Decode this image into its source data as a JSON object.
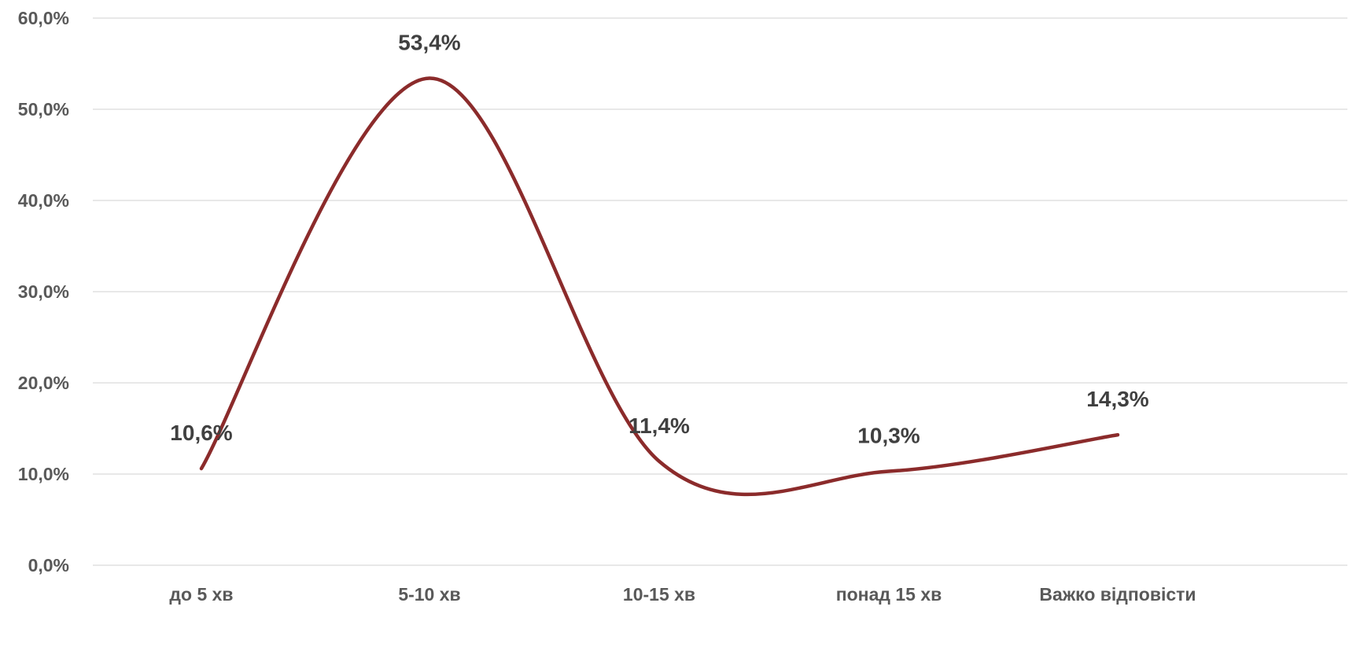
{
  "chart_data": {
    "type": "line",
    "smooth": true,
    "categories": [
      "до 5 хв",
      "5-10 хв",
      "10-15 хв",
      "понад 15 хв",
      "Важко відповісти"
    ],
    "series": [
      {
        "values": [
          10.6,
          53.4,
          11.4,
          10.3,
          14.3
        ],
        "data_labels": [
          "10,6%",
          "53,4%",
          "11,4%",
          "10,3%",
          "14,3%"
        ],
        "color": "#8b2b2b"
      }
    ],
    "y_ticks": [
      0,
      10,
      20,
      30,
      40,
      50,
      60
    ],
    "y_tick_labels": [
      "0,0%",
      "10,0%",
      "20,0%",
      "30,0%",
      "40,0%",
      "50,0%",
      "60,0%"
    ],
    "ylim": [
      0,
      60
    ],
    "grid": true,
    "legend": "none",
    "title": "",
    "xlabel": "",
    "ylabel": ""
  }
}
